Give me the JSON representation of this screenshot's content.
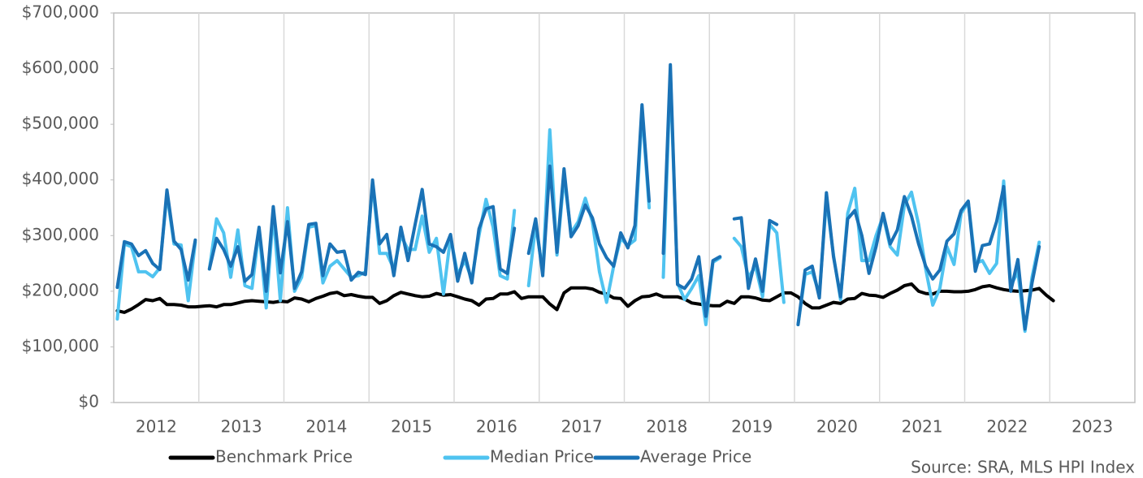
{
  "chart_data": {
    "type": "line",
    "categories": [
      "2012",
      null,
      null,
      null,
      null,
      null,
      null,
      null,
      null,
      null,
      null,
      null,
      "2013",
      null,
      null,
      null,
      null,
      null,
      null,
      null,
      null,
      null,
      null,
      null,
      "2014",
      null,
      null,
      null,
      null,
      null,
      null,
      null,
      null,
      null,
      null,
      null,
      "2015",
      null,
      null,
      null,
      null,
      null,
      null,
      null,
      null,
      null,
      null,
      null,
      "2016",
      null,
      null,
      null,
      null,
      null,
      null,
      null,
      null,
      null,
      null,
      null,
      "2017",
      null,
      null,
      null,
      null,
      null,
      null,
      null,
      null,
      null,
      null,
      null,
      "2018",
      null,
      null,
      null,
      null,
      null,
      null,
      null,
      null,
      null,
      null,
      null,
      "2019",
      null,
      null,
      null,
      null,
      null,
      null,
      null,
      null,
      null,
      null,
      null,
      "2020",
      null,
      null,
      null,
      null,
      null,
      null,
      null,
      null,
      null,
      null,
      null,
      "2021",
      null,
      null,
      null,
      null,
      null,
      null,
      null,
      null,
      null,
      null,
      null,
      "2022",
      null,
      null,
      null,
      null,
      null,
      null,
      null,
      null,
      null,
      null,
      null,
      "2023",
      null,
      null,
      null,
      null,
      null,
      null,
      null,
      null,
      null,
      null,
      null
    ],
    "series": [
      {
        "name": "Benchmark Price",
        "color": "#000000",
        "values": [
          165000,
          162000,
          168000,
          176000,
          185000,
          183000,
          187000,
          176000,
          176000,
          175000,
          172000,
          172000,
          173000,
          174000,
          172000,
          176000,
          176000,
          179000,
          182000,
          183000,
          182000,
          181000,
          180000,
          182000,
          181000,
          188000,
          186000,
          181000,
          187000,
          191000,
          196000,
          198000,
          192000,
          194000,
          191000,
          189000,
          189000,
          178000,
          183000,
          192000,
          198000,
          195000,
          192000,
          190000,
          191000,
          196000,
          193000,
          194000,
          190000,
          186000,
          183000,
          175000,
          186000,
          187000,
          195000,
          195000,
          199000,
          187000,
          190000,
          190000,
          190000,
          177000,
          167000,
          197000,
          206000,
          206000,
          206000,
          204000,
          198000,
          195000,
          188000,
          187000,
          173000,
          183000,
          190000,
          191000,
          195000,
          190000,
          190000,
          190000,
          186000,
          179000,
          177000,
          175000,
          174000,
          174000,
          182000,
          178000,
          190000,
          190000,
          188000,
          184000,
          183000,
          190000,
          197000,
          197000,
          190000,
          178000,
          170000,
          170000,
          175000,
          180000,
          178000,
          186000,
          187000,
          196000,
          193000,
          192000,
          189000,
          196000,
          202000,
          210000,
          213000,
          200000,
          196000,
          195000,
          200000,
          200000,
          199000,
          199000,
          200000,
          203000,
          208000,
          210000,
          206000,
          203000,
          201000,
          200000,
          201000,
          202000,
          205000,
          193000,
          183000,
          null,
          null,
          null,
          null,
          null,
          null,
          null,
          null,
          null,
          null,
          null
        ]
      },
      {
        "name": "Median Price",
        "color": "#4fc3f0",
        "values": [
          150000,
          285000,
          280000,
          235000,
          235000,
          226000,
          242000,
          375000,
          285000,
          283000,
          183000,
          288000,
          null,
          240000,
          330000,
          305000,
          225000,
          310000,
          210000,
          205000,
          310000,
          170000,
          340000,
          183000,
          350000,
          200000,
          225000,
          315000,
          318000,
          215000,
          245000,
          255000,
          240000,
          225000,
          228000,
          235000,
          395000,
          268000,
          268000,
          240000,
          300000,
          275000,
          275000,
          335000,
          270000,
          295000,
          195000,
          298000,
          230000,
          255000,
          222000,
          300000,
          365000,
          315000,
          228000,
          222000,
          345000,
          null,
          210000,
          320000,
          235000,
          490000,
          265000,
          405000,
          305000,
          325000,
          367000,
          325000,
          235000,
          180000,
          245000,
          295000,
          282000,
          292000,
          525000,
          350000,
          null,
          225000,
          590000,
          215000,
          185000,
          205000,
          228000,
          140000,
          252000,
          260000,
          null,
          295000,
          280000,
          225000,
          245000,
          190000,
          320000,
          305000,
          180000,
          null,
          140000,
          230000,
          235000,
          195000,
          365000,
          265000,
          185000,
          340000,
          385000,
          255000,
          255000,
          300000,
          335000,
          280000,
          265000,
          355000,
          378000,
          320000,
          240000,
          175000,
          205000,
          280000,
          248000,
          340000,
          360000,
          250000,
          255000,
          232000,
          250000,
          398000,
          210000,
          235000,
          128000,
          225000,
          288000,
          null,
          null,
          null,
          null,
          null,
          null,
          null,
          null,
          null,
          null,
          null,
          null,
          null
        ]
      },
      {
        "name": "Average Price",
        "color": "#1a72b6",
        "values": [
          207000,
          289000,
          285000,
          264000,
          273000,
          250000,
          239000,
          382000,
          290000,
          275000,
          220000,
          292000,
          null,
          240000,
          295000,
          275000,
          245000,
          280000,
          218000,
          230000,
          315000,
          200000,
          352000,
          233000,
          325000,
          205000,
          235000,
          320000,
          322000,
          228000,
          285000,
          270000,
          272000,
          220000,
          234000,
          230000,
          400000,
          285000,
          302000,
          228000,
          315000,
          255000,
          320000,
          383000,
          285000,
          280000,
          270000,
          302000,
          218000,
          268000,
          215000,
          312000,
          348000,
          352000,
          240000,
          232000,
          313000,
          null,
          268000,
          330000,
          228000,
          425000,
          270000,
          420000,
          298000,
          318000,
          355000,
          332000,
          285000,
          260000,
          245000,
          305000,
          278000,
          318000,
          535000,
          362000,
          null,
          268000,
          607000,
          212000,
          205000,
          222000,
          262000,
          155000,
          255000,
          262000,
          null,
          330000,
          332000,
          205000,
          258000,
          200000,
          327000,
          320000,
          null,
          null,
          140000,
          238000,
          245000,
          188000,
          377000,
          262000,
          190000,
          330000,
          345000,
          300000,
          232000,
          280000,
          340000,
          285000,
          310000,
          370000,
          335000,
          285000,
          245000,
          222000,
          238000,
          290000,
          303000,
          345000,
          362000,
          236000,
          282000,
          285000,
          325000,
          388000,
          200000,
          257000,
          132000,
          215000,
          280000,
          null,
          null,
          null,
          null,
          null,
          null,
          null,
          null,
          null,
          null,
          null,
          null,
          null
        ]
      }
    ],
    "ylim": [
      0,
      700000
    ],
    "yticks": [
      {
        "value": 0,
        "label": "$0"
      },
      {
        "value": 100000,
        "label": "$100,000"
      },
      {
        "value": 200000,
        "label": "$200,000"
      },
      {
        "value": 300000,
        "label": "$300,000"
      },
      {
        "value": 400000,
        "label": "$400,000"
      },
      {
        "value": 500000,
        "label": "$500,000"
      },
      {
        "value": 600000,
        "label": "$600,000"
      },
      {
        "value": 700000,
        "label": "$700,000"
      }
    ],
    "grid": false,
    "xgrid": true,
    "legend": "bottom",
    "source": "Source: SRA, MLS HPI Index"
  }
}
